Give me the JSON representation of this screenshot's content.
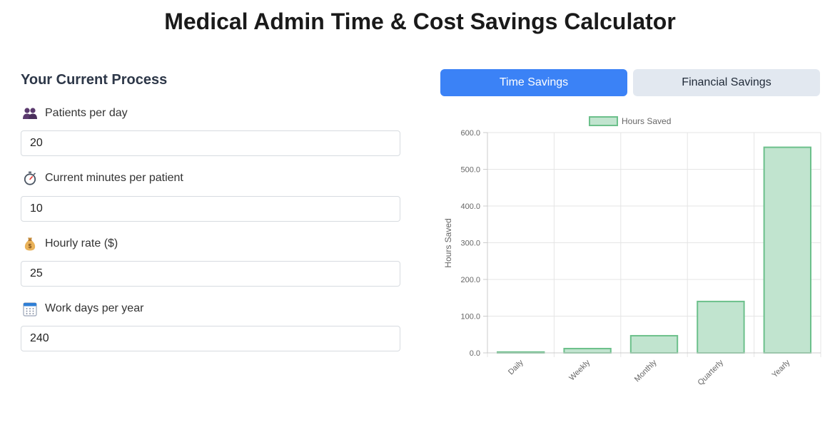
{
  "page": {
    "title": "Medical Admin Time & Cost Savings Calculator"
  },
  "form": {
    "section_title": "Your Current Process",
    "fields": [
      {
        "label": "Patients per day",
        "value": "20",
        "icon": "people-icon"
      },
      {
        "label": "Current minutes per patient",
        "value": "10",
        "icon": "stopwatch-icon"
      },
      {
        "label": "Hourly rate ($)",
        "value": "25",
        "icon": "money-bag-icon"
      },
      {
        "label": "Work days per year",
        "value": "240",
        "icon": "calendar-icon"
      }
    ]
  },
  "tabs": [
    {
      "label": "Time Savings",
      "active": true
    },
    {
      "label": "Financial Savings",
      "active": false
    }
  ],
  "colors": {
    "accent": "#3b82f6",
    "bar_fill": "#c1e4cf",
    "bar_stroke": "#6cc08b"
  },
  "chart_data": {
    "type": "bar",
    "categories": [
      "Daily",
      "Weekly",
      "Monthly",
      "Quarterly",
      "Yearly"
    ],
    "series": [
      {
        "name": "Hours Saved",
        "values": [
          2.3,
          11.7,
          46.7,
          140,
          560
        ]
      }
    ],
    "ylabel": "Hours Saved",
    "xlabel": "",
    "ylim": [
      0,
      600
    ],
    "yticks": [
      "0.0",
      "100.0",
      "200.0",
      "300.0",
      "400.0",
      "500.0",
      "600.0"
    ],
    "grid": true,
    "legend": "top"
  }
}
